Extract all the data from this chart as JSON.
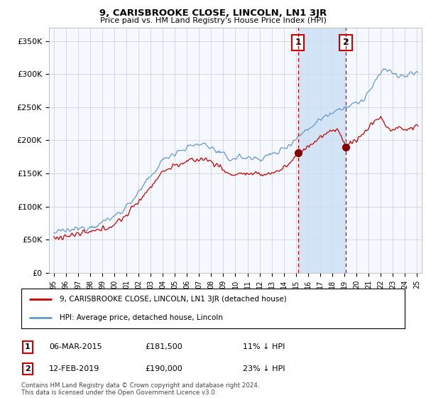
{
  "title": "9, CARISBROOKE CLOSE, LINCOLN, LN1 3JR",
  "subtitle": "Price paid vs. HM Land Registry's House Price Index (HPI)",
  "ylabel_ticks": [
    "£0",
    "£50K",
    "£100K",
    "£150K",
    "£200K",
    "£250K",
    "£300K",
    "£350K"
  ],
  "ytick_values": [
    0,
    50000,
    100000,
    150000,
    200000,
    250000,
    300000,
    350000
  ],
  "ylim": [
    0,
    370000
  ],
  "xlim_start": 1994.6,
  "xlim_end": 2025.4,
  "sale1_date": 2015.17,
  "sale1_price": 181500,
  "sale1_label": "1",
  "sale2_date": 2019.12,
  "sale2_price": 190000,
  "sale2_label": "2",
  "legend_line1": "9, CARISBROOKE CLOSE, LINCOLN, LN1 3JR (detached house)",
  "legend_line2": "HPI: Average price, detached house, Lincoln",
  "table_row1": [
    "1",
    "06-MAR-2015",
    "£181,500",
    "11% ↓ HPI"
  ],
  "table_row2": [
    "2",
    "12-FEB-2019",
    "£190,000",
    "23% ↓ HPI"
  ],
  "footnote": "Contains HM Land Registry data © Crown copyright and database right 2024.\nThis data is licensed under the Open Government Licence v3.0.",
  "hpi_color": "#6699cc",
  "hpi_fill_color": "#d0e4f7",
  "shade_color": "#cce0f5",
  "property_color": "#cc0000",
  "vline_color": "#cc0000",
  "background_color": "#ffffff",
  "plot_bg_color": "#f5f8ff",
  "grid_color": "#cccccc"
}
